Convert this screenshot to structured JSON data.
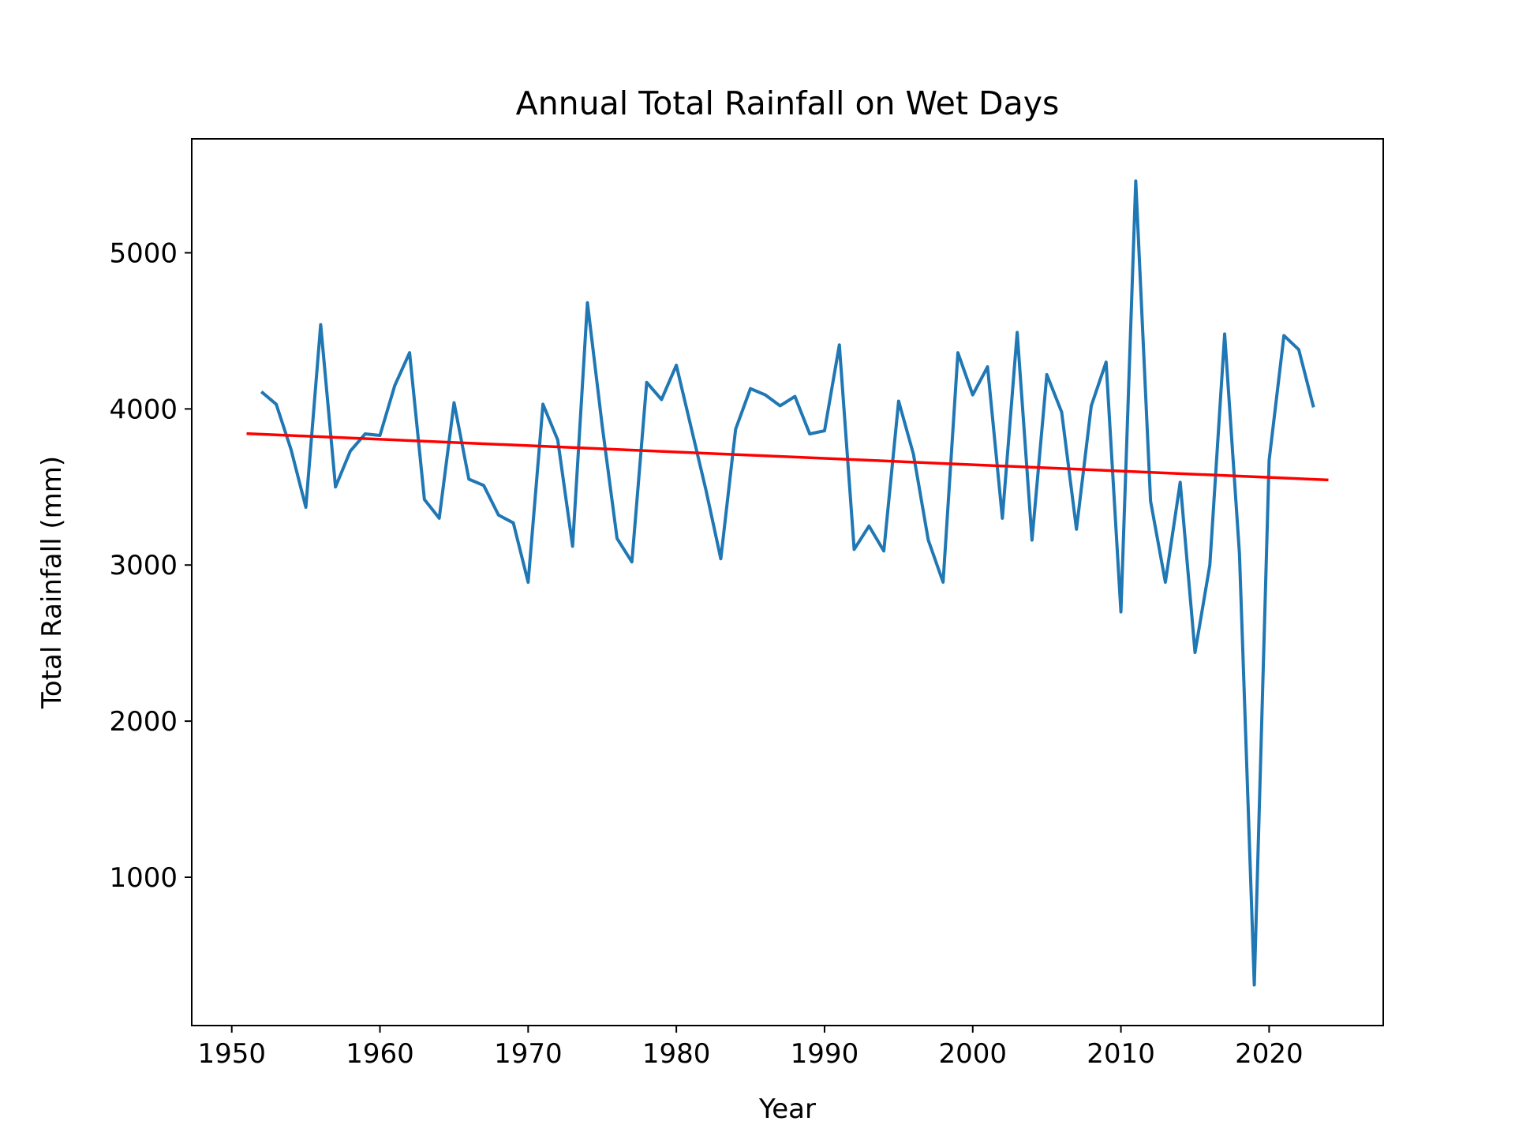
{
  "colors": {
    "data_line": "#1f77b4",
    "trend_line": "#ff0000",
    "axes": "#000000",
    "background": "#ffffff"
  },
  "chart_data": {
    "type": "line",
    "title": "Annual Total Rainfall on Wet Days",
    "xlabel": "Year",
    "ylabel": "Total Rainfall (mm)",
    "xlim": [
      1947.3,
      2027.7
    ],
    "ylim": [
      50,
      5730
    ],
    "grid": false,
    "x_ticks": [
      1950,
      1960,
      1970,
      1980,
      1990,
      2000,
      2010,
      2020
    ],
    "y_ticks": [
      1000,
      2000,
      3000,
      4000,
      5000
    ],
    "series": [
      {
        "role": "data",
        "x": [
          1952,
          1953,
          1954,
          1955,
          1956,
          1957,
          1958,
          1959,
          1960,
          1961,
          1962,
          1963,
          1964,
          1965,
          1966,
          1967,
          1968,
          1969,
          1970,
          1971,
          1972,
          1973,
          1974,
          1975,
          1976,
          1977,
          1978,
          1979,
          1980,
          1981,
          1982,
          1983,
          1984,
          1985,
          1986,
          1987,
          1988,
          1989,
          1990,
          1991,
          1992,
          1993,
          1994,
          1995,
          1996,
          1997,
          1998,
          1999,
          2000,
          2001,
          2002,
          2003,
          2004,
          2005,
          2006,
          2007,
          2008,
          2009,
          2010,
          2011,
          2012,
          2013,
          2014,
          2015,
          2016,
          2017,
          2018,
          2019,
          2020,
          2021,
          2022,
          2023
        ],
        "y": [
          4110,
          4030,
          3740,
          3370,
          4540,
          3500,
          3730,
          3840,
          3830,
          4150,
          4360,
          3420,
          3300,
          4040,
          3550,
          3510,
          3320,
          3270,
          2890,
          4030,
          3800,
          3120,
          4680,
          3890,
          3170,
          3020,
          4170,
          4060,
          4280,
          3880,
          3480,
          3040,
          3870,
          4130,
          4090,
          4020,
          4080,
          3840,
          3860,
          4410,
          3100,
          3250,
          3090,
          4050,
          3710,
          3160,
          2890,
          4360,
          4090,
          4270,
          3300,
          4490,
          3160,
          4220,
          3980,
          3230,
          4020,
          4300,
          2700,
          5460,
          3410,
          2890,
          3530,
          2440,
          3000,
          4480,
          3070,
          310,
          3670,
          4470,
          4380,
          4010
        ]
      },
      {
        "role": "trend",
        "x": [
          1951,
          2024
        ],
        "y": [
          3842,
          3545
        ]
      }
    ]
  }
}
